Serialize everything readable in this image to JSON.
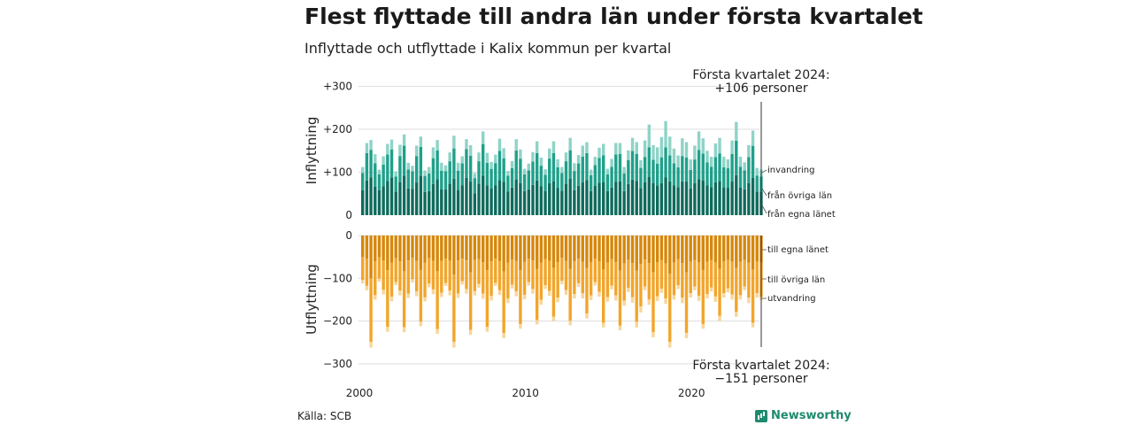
{
  "title": "Flest flyttade till andra län under första kvartalet",
  "subtitle": "Inflyttade och utflyttade i Kalix kommun per kvartal",
  "source": "Källa: SCB",
  "brand": "Newsworthy",
  "colors": {
    "in_own": "#0f6b5c",
    "in_other": "#1fa08a",
    "in_immigration": "#8fd3c7",
    "out_own": "#d6870b",
    "out_other": "#f2a52a",
    "out_emigration": "#f7d69a"
  },
  "chart_data": [
    {
      "type": "bar",
      "stacked": true,
      "ylabel": "Inflyttning",
      "ylim": [
        0,
        300
      ],
      "yticks": [
        "0",
        "+100",
        "+200",
        "+300"
      ],
      "yticks_values": [
        0,
        100,
        200,
        300
      ],
      "x_start_year": 2000,
      "x_end": "2024 Q1",
      "xticks": [
        "2000",
        "2010",
        "2020"
      ],
      "series_labels": [
        "invandring",
        "från övriga län",
        "från egna länet"
      ],
      "series_names": [
        "från egna länet",
        "från övriga län",
        "invandring"
      ],
      "annotation": [
        "Första kvartalet 2024:",
        "+106 personer"
      ],
      "totals": [
        112,
        168,
        175,
        142,
        106,
        137,
        166,
        176,
        102,
        164,
        188,
        122,
        115,
        162,
        183,
        104,
        112,
        158,
        175,
        122,
        116,
        146,
        185,
        122,
        137,
        177,
        163,
        98,
        146,
        195,
        145,
        124,
        141,
        178,
        156,
        103,
        126,
        177,
        153,
        108,
        120,
        147,
        172,
        134,
        107,
        155,
        172,
        130,
        112,
        146,
        180,
        121,
        140,
        162,
        170,
        106,
        136,
        157,
        166,
        108,
        131,
        168,
        168,
        112,
        151,
        180,
        170,
        128,
        174,
        211,
        163,
        158,
        182,
        219,
        183,
        155,
        139,
        179,
        170,
        130,
        162,
        195,
        179,
        150,
        136,
        167,
        180,
        136,
        130,
        174,
        217,
        136,
        123,
        163,
        197,
        110,
        106
      ],
      "own_share": [
        0.52,
        0.48,
        0.5,
        0.47,
        0.55,
        0.49,
        0.48,
        0.5,
        0.54,
        0.47,
        0.49,
        0.51,
        0.53,
        0.47,
        0.5,
        0.52,
        0.5,
        0.46,
        0.48,
        0.49,
        0.52,
        0.5,
        0.46,
        0.48,
        0.51,
        0.49,
        0.48,
        0.52,
        0.5,
        0.47,
        0.48,
        0.5,
        0.49,
        0.46,
        0.5,
        0.53,
        0.51,
        0.47,
        0.49,
        0.52,
        0.5,
        0.48,
        0.47,
        0.5,
        0.52,
        0.48,
        0.46,
        0.49,
        0.51,
        0.5,
        0.47,
        0.48,
        0.49,
        0.47,
        0.48,
        0.53,
        0.5,
        0.48,
        0.46,
        0.52,
        0.49,
        0.46,
        0.47,
        0.5,
        0.48,
        0.46,
        0.47,
        0.49,
        0.44,
        0.42,
        0.46,
        0.44,
        0.41,
        0.4,
        0.43,
        0.45,
        0.47,
        0.44,
        0.46,
        0.48,
        0.46,
        0.43,
        0.45,
        0.46,
        0.48,
        0.46,
        0.44,
        0.47,
        0.49,
        0.45,
        0.43,
        0.47,
        0.49,
        0.46,
        0.44,
        0.5,
        0.52
      ],
      "immigration_share": [
        0.12,
        0.14,
        0.13,
        0.15,
        0.1,
        0.14,
        0.15,
        0.13,
        0.12,
        0.16,
        0.14,
        0.13,
        0.11,
        0.15,
        0.13,
        0.12,
        0.13,
        0.16,
        0.14,
        0.15,
        0.12,
        0.14,
        0.16,
        0.15,
        0.12,
        0.13,
        0.15,
        0.12,
        0.14,
        0.15,
        0.16,
        0.13,
        0.14,
        0.16,
        0.15,
        0.11,
        0.13,
        0.15,
        0.14,
        0.12,
        0.13,
        0.15,
        0.16,
        0.14,
        0.12,
        0.15,
        0.16,
        0.14,
        0.12,
        0.14,
        0.16,
        0.15,
        0.14,
        0.16,
        0.15,
        0.12,
        0.14,
        0.15,
        0.16,
        0.12,
        0.14,
        0.16,
        0.15,
        0.13,
        0.15,
        0.17,
        0.16,
        0.14,
        0.22,
        0.25,
        0.21,
        0.24,
        0.26,
        0.28,
        0.24,
        0.22,
        0.2,
        0.23,
        0.21,
        0.19,
        0.2,
        0.22,
        0.2,
        0.18,
        0.17,
        0.19,
        0.2,
        0.18,
        0.16,
        0.18,
        0.2,
        0.17,
        0.15,
        0.17,
        0.18,
        0.16,
        0.15
      ]
    },
    {
      "type": "bar",
      "stacked": true,
      "ylabel": "Utflyttning",
      "ylim": [
        -300,
        0
      ],
      "yticks": [
        "0",
        "−100",
        "−200",
        "−300"
      ],
      "yticks_values": [
        0,
        -100,
        -200,
        -300
      ],
      "series_labels": [
        "till egna länet",
        "till övriga län",
        "utvandring"
      ],
      "series_names": [
        "till egna länet",
        "till övriga län",
        "utvandring"
      ],
      "annotation": [
        "Första kvartalet 2024:",
        "−151 personer"
      ],
      "totals": [
        112,
        128,
        262,
        150,
        108,
        138,
        225,
        154,
        116,
        140,
        226,
        146,
        110,
        142,
        212,
        154,
        121,
        137,
        230,
        144,
        118,
        140,
        262,
        146,
        115,
        136,
        232,
        140,
        122,
        148,
        225,
        152,
        118,
        139,
        240,
        158,
        124,
        142,
        218,
        149,
        117,
        136,
        208,
        162,
        125,
        141,
        200,
        156,
        114,
        139,
        210,
        147,
        120,
        147,
        194,
        151,
        117,
        143,
        215,
        155,
        126,
        152,
        222,
        164,
        132,
        157,
        215,
        180,
        128,
        162,
        238,
        153,
        134,
        160,
        262,
        150,
        125,
        158,
        240,
        145,
        128,
        153,
        218,
        147,
        131,
        155,
        200,
        145,
        133,
        150,
        190,
        150,
        128,
        158,
        215,
        145,
        151
      ],
      "own_share": [
        0.45,
        0.42,
        0.38,
        0.4,
        0.47,
        0.42,
        0.36,
        0.41,
        0.46,
        0.43,
        0.37,
        0.4,
        0.47,
        0.42,
        0.38,
        0.41,
        0.44,
        0.43,
        0.36,
        0.41,
        0.46,
        0.42,
        0.35,
        0.4,
        0.47,
        0.43,
        0.37,
        0.41,
        0.45,
        0.42,
        0.36,
        0.4,
        0.46,
        0.43,
        0.35,
        0.4,
        0.45,
        0.42,
        0.37,
        0.41,
        0.46,
        0.43,
        0.38,
        0.39,
        0.44,
        0.42,
        0.38,
        0.4,
        0.46,
        0.43,
        0.37,
        0.41,
        0.45,
        0.42,
        0.39,
        0.41,
        0.46,
        0.42,
        0.37,
        0.41,
        0.44,
        0.41,
        0.37,
        0.4,
        0.43,
        0.41,
        0.38,
        0.37,
        0.44,
        0.4,
        0.36,
        0.41,
        0.43,
        0.41,
        0.34,
        0.42,
        0.44,
        0.41,
        0.36,
        0.42,
        0.45,
        0.41,
        0.37,
        0.42,
        0.44,
        0.41,
        0.39,
        0.42,
        0.43,
        0.41,
        0.4,
        0.41,
        0.45,
        0.4,
        0.37,
        0.42,
        0.42
      ],
      "emigration_share": [
        0.07,
        0.08,
        0.05,
        0.07,
        0.07,
        0.08,
        0.05,
        0.07,
        0.06,
        0.08,
        0.05,
        0.07,
        0.07,
        0.08,
        0.05,
        0.06,
        0.07,
        0.08,
        0.05,
        0.07,
        0.06,
        0.08,
        0.05,
        0.07,
        0.07,
        0.08,
        0.05,
        0.07,
        0.07,
        0.08,
        0.05,
        0.07,
        0.06,
        0.08,
        0.05,
        0.07,
        0.07,
        0.08,
        0.05,
        0.07,
        0.07,
        0.08,
        0.05,
        0.07,
        0.07,
        0.08,
        0.05,
        0.07,
        0.07,
        0.08,
        0.05,
        0.07,
        0.07,
        0.08,
        0.06,
        0.07,
        0.07,
        0.08,
        0.05,
        0.07,
        0.07,
        0.08,
        0.05,
        0.07,
        0.07,
        0.08,
        0.06,
        0.08,
        0.07,
        0.08,
        0.05,
        0.07,
        0.07,
        0.08,
        0.05,
        0.07,
        0.07,
        0.08,
        0.05,
        0.07,
        0.07,
        0.08,
        0.05,
        0.07,
        0.07,
        0.08,
        0.06,
        0.07,
        0.07,
        0.08,
        0.06,
        0.07,
        0.07,
        0.08,
        0.05,
        0.07,
        0.05
      ]
    }
  ]
}
